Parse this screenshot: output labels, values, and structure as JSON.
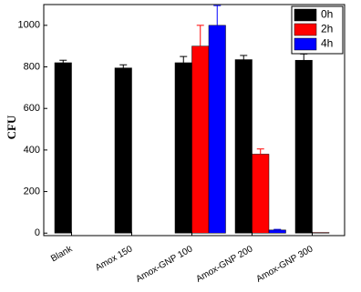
{
  "chart_data": {
    "type": "bar",
    "y_label": "CFU",
    "categories": [
      "Blank",
      "Amox 150",
      "Amox-GNP 100",
      "Amox-GNP 200",
      "Amox-GNP 300"
    ],
    "series": [
      {
        "name": "0h",
        "color": "#000000",
        "values": [
          820,
          795,
          820,
          835,
          832
        ],
        "errors": [
          12,
          15,
          30,
          20,
          30
        ]
      },
      {
        "name": "2h",
        "color": "#ff0000",
        "values": [
          0,
          0,
          900,
          380,
          3
        ],
        "errors": [
          0,
          0,
          100,
          25,
          0
        ]
      },
      {
        "name": "4h",
        "color": "#0000ff",
        "values": [
          0,
          0,
          1000,
          15,
          0
        ],
        "errors": [
          0,
          0,
          95,
          3,
          0
        ]
      }
    ],
    "ylim": [
      -12,
      1100
    ],
    "yticks": [
      0,
      200,
      400,
      600,
      800,
      1000
    ],
    "legend": "top-right"
  }
}
